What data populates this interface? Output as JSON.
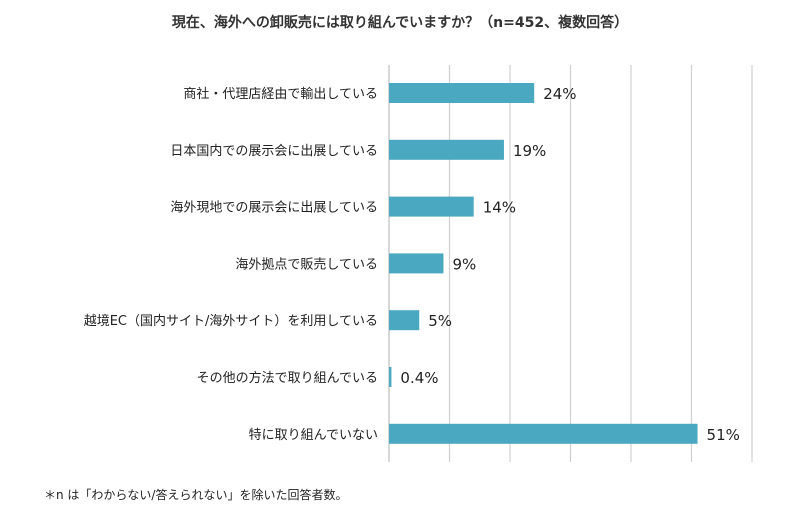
{
  "chart_data": {
    "type": "bar",
    "orientation": "horizontal",
    "title": "現在、海外への卸販売には取り組んでいますか？（n=452、複数回答）",
    "categories": [
      "商社・代理店経由で輸出している",
      "日本国内での展示会に出展している",
      "海外現地での展示会に出展している",
      "海外拠点で販売している",
      "越境EC（国内サイト/海外サイト）を利用している",
      "その他の方法で取り組んでいる",
      "特に取り組んでいない"
    ],
    "values": [
      24,
      19,
      14,
      9,
      5,
      0.4,
      51
    ],
    "value_labels": [
      "24%",
      "19%",
      "14%",
      "9%",
      "5%",
      "0.4%",
      "51%"
    ],
    "xlim": [
      0,
      60
    ],
    "xlabel": "",
    "ylabel": "",
    "grid": true,
    "bar_color": "#4aa8c0"
  },
  "footnote": "＊n は「わからない/答えられない」を除いた回答者数。"
}
